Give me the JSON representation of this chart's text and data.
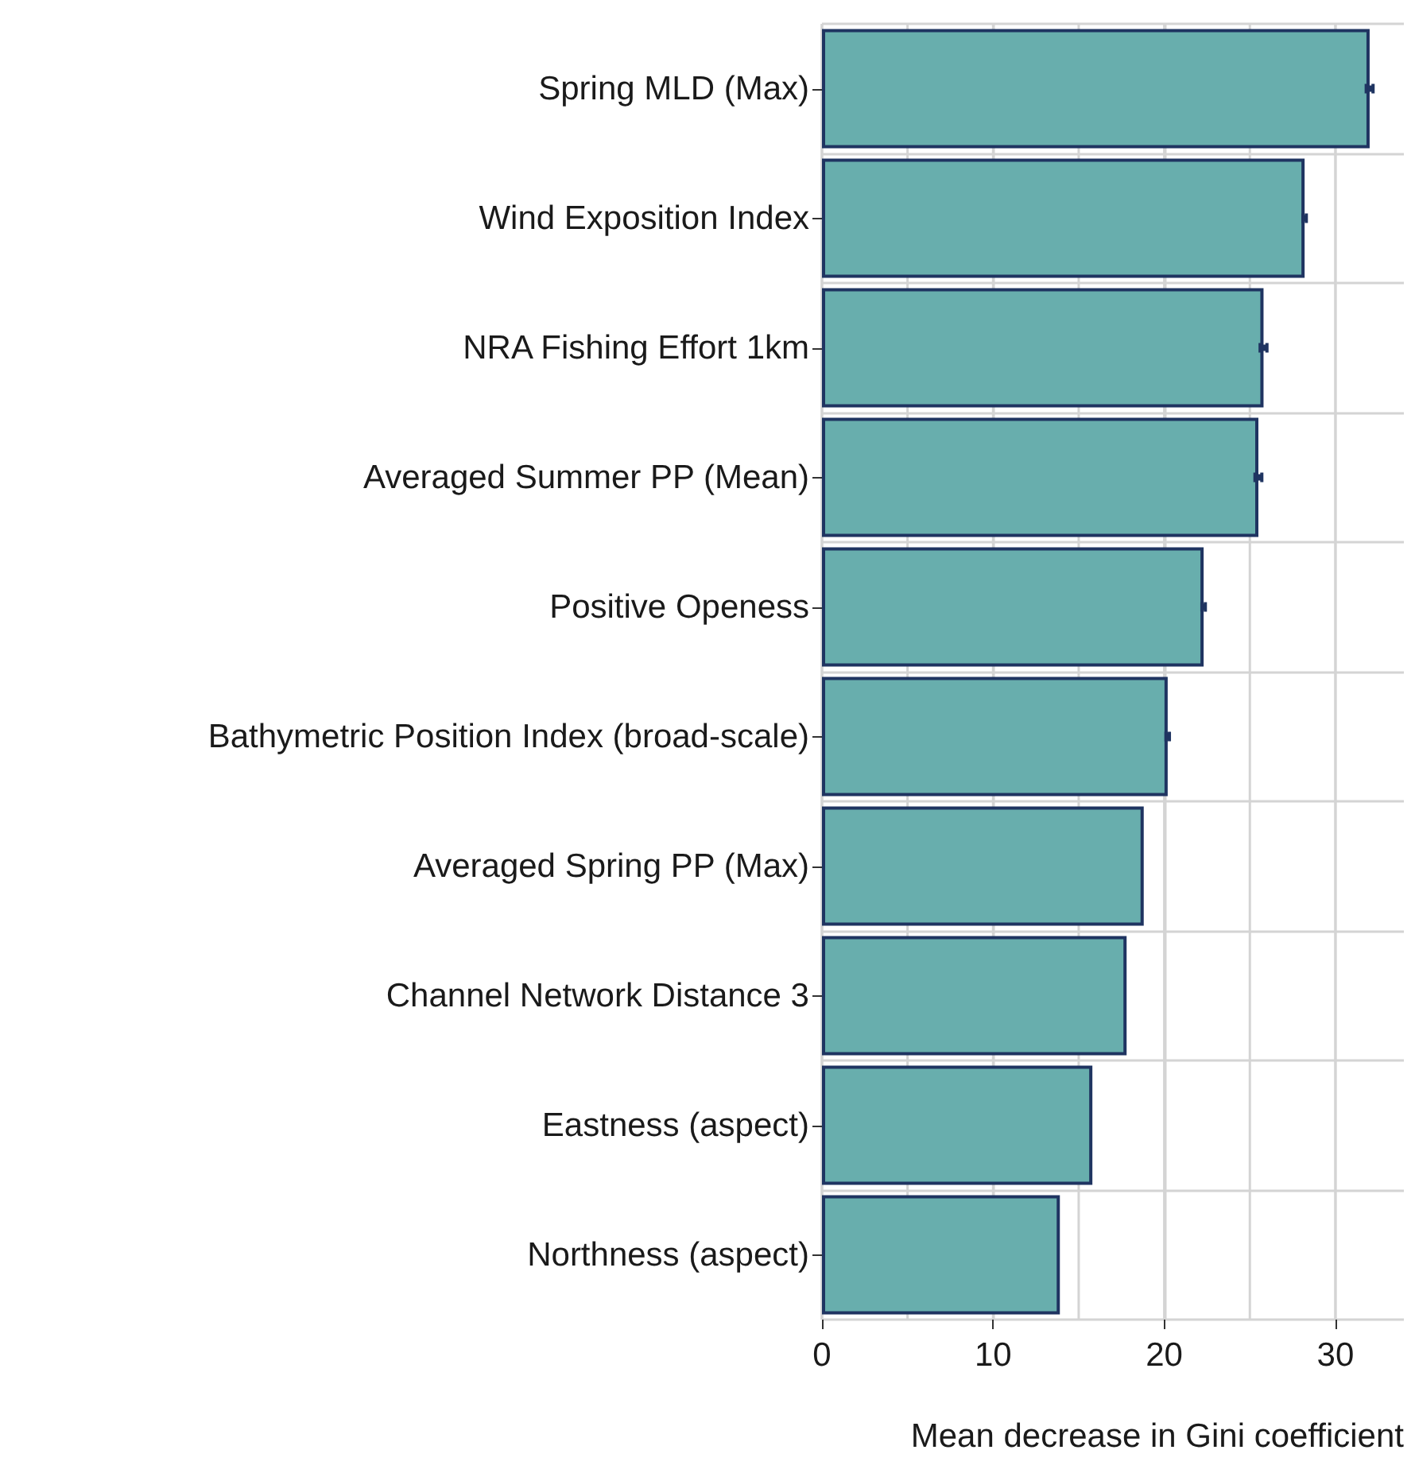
{
  "chart_data": {
    "type": "bar",
    "orientation": "horizontal",
    "xlabel": "Mean decrease in Gini coefficient",
    "categories": [
      "Spring MLD (Max)",
      "Wind Exposition Index",
      "NRA Fishing Effort 1km",
      "Averaged Summer PP (Mean)",
      "Positive Openess",
      "Bathymetric Position Index (broad-scale)",
      "Averaged Spring PP (Max)",
      "Channel Network Distance 3",
      "Eastness (aspect)",
      "Northness (aspect)"
    ],
    "values": [
      32.0,
      28.2,
      25.8,
      25.5,
      22.3,
      20.2,
      18.8,
      17.8,
      15.8,
      13.9
    ],
    "errors": [
      0.2,
      0.1,
      0.2,
      0.2,
      0.1,
      0.1,
      null,
      null,
      null,
      null
    ],
    "color": "#68aead",
    "xlim": [
      0,
      34
    ],
    "xticks": [
      0,
      {
        "value": 5,
        "label": null
      },
      10,
      {
        "value": 15,
        "label": null
      },
      20,
      {
        "value": 25,
        "label": null
      },
      30
    ],
    "grid": true
  }
}
